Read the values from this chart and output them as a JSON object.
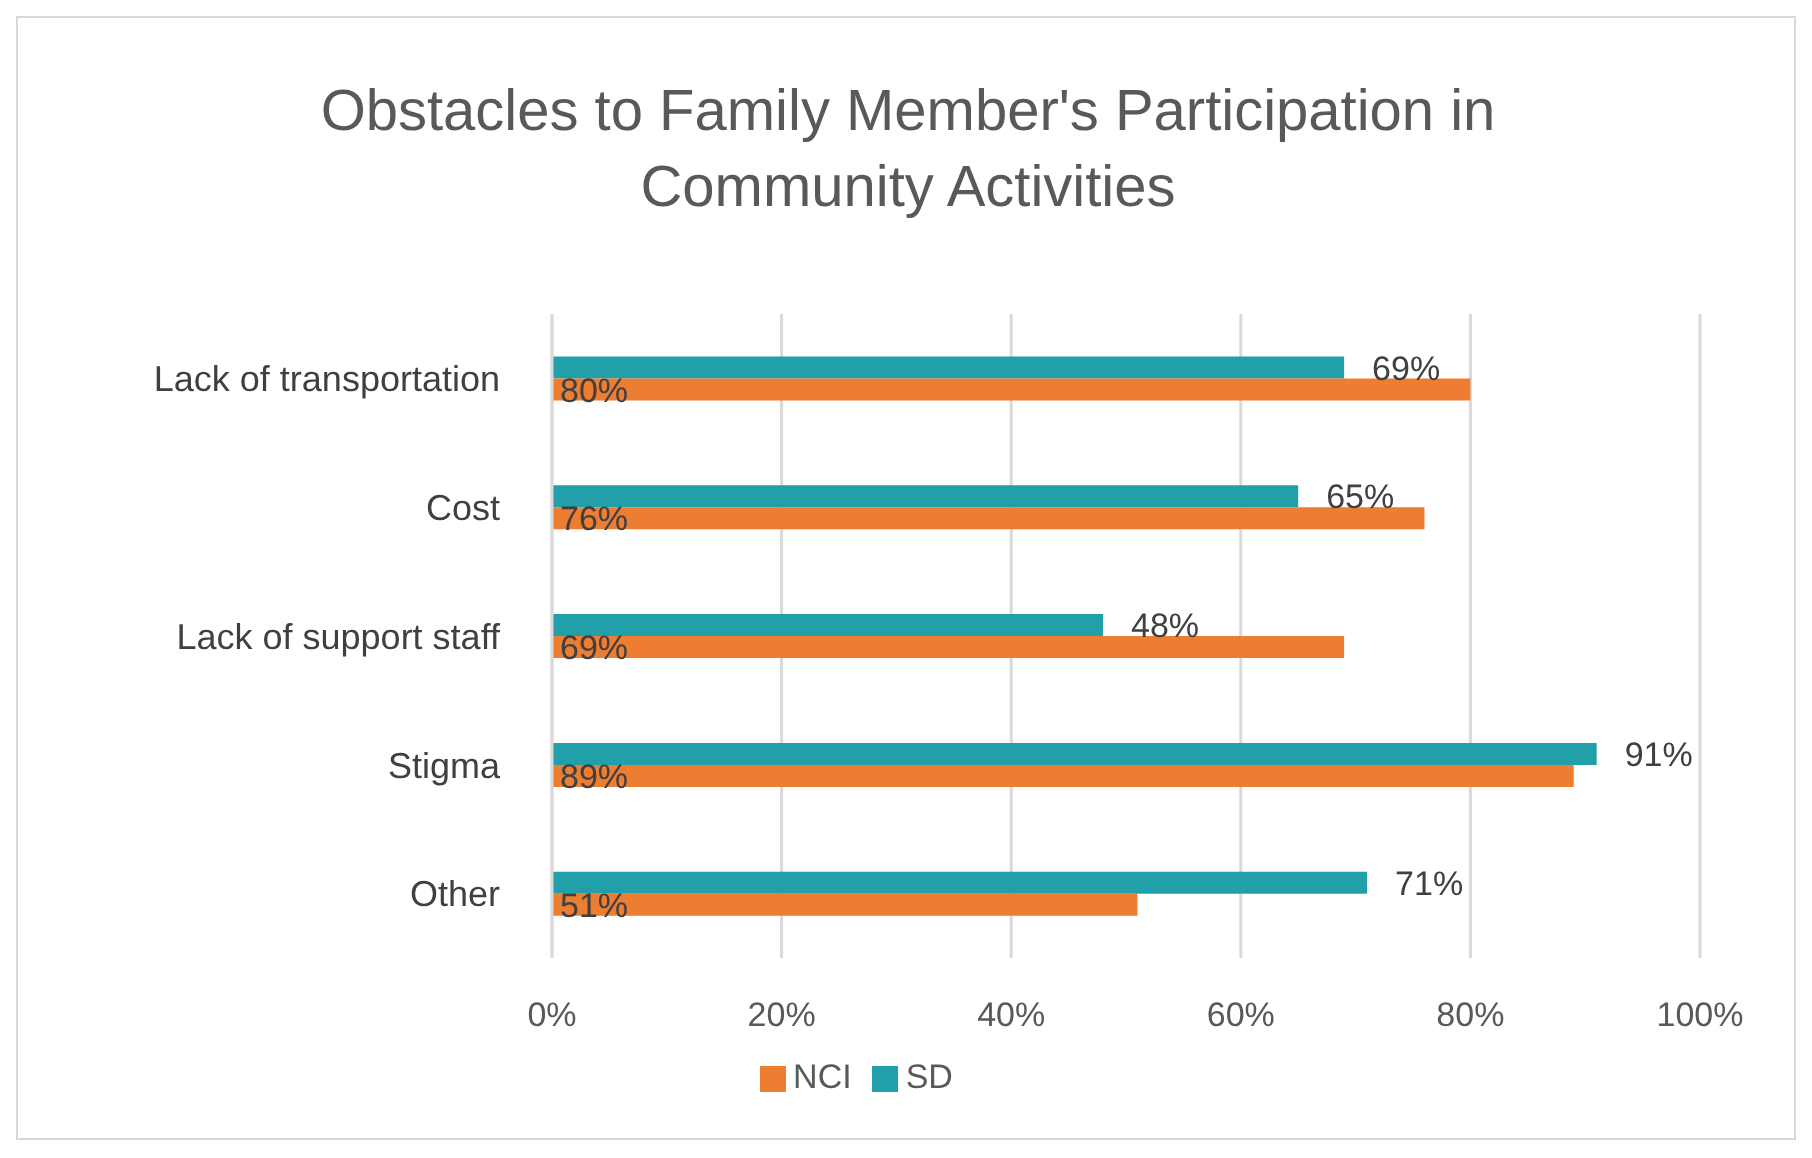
{
  "chart_data": {
    "type": "bar",
    "orientation": "horizontal",
    "title": "Obstacles to Family Member's Participation in Community Activities",
    "categories": [
      "Lack of transportation",
      "Cost",
      "Lack of support staff",
      "Stigma",
      "Other"
    ],
    "series": [
      {
        "name": "SD",
        "color": "#21a0a9",
        "values": [
          69,
          65,
          48,
          91,
          71
        ],
        "value_labels": [
          "69%",
          "65%",
          "48%",
          "91%",
          "71%"
        ]
      },
      {
        "name": "NCI",
        "color": "#ed7d31",
        "values": [
          80,
          76,
          69,
          89,
          51
        ],
        "value_labels": [
          "80%",
          "76%",
          "69%",
          "89%",
          "51%"
        ]
      }
    ],
    "xlim": [
      0,
      100
    ],
    "xticks": [
      {
        "value": 0,
        "label": "0%"
      },
      {
        "value": 20,
        "label": "20%"
      },
      {
        "value": 40,
        "label": "40%"
      },
      {
        "value": 60,
        "label": "60%"
      },
      {
        "value": 80,
        "label": "80%"
      },
      {
        "value": 100,
        "label": "100%"
      }
    ],
    "grid": "x",
    "legend": "bottom"
  }
}
